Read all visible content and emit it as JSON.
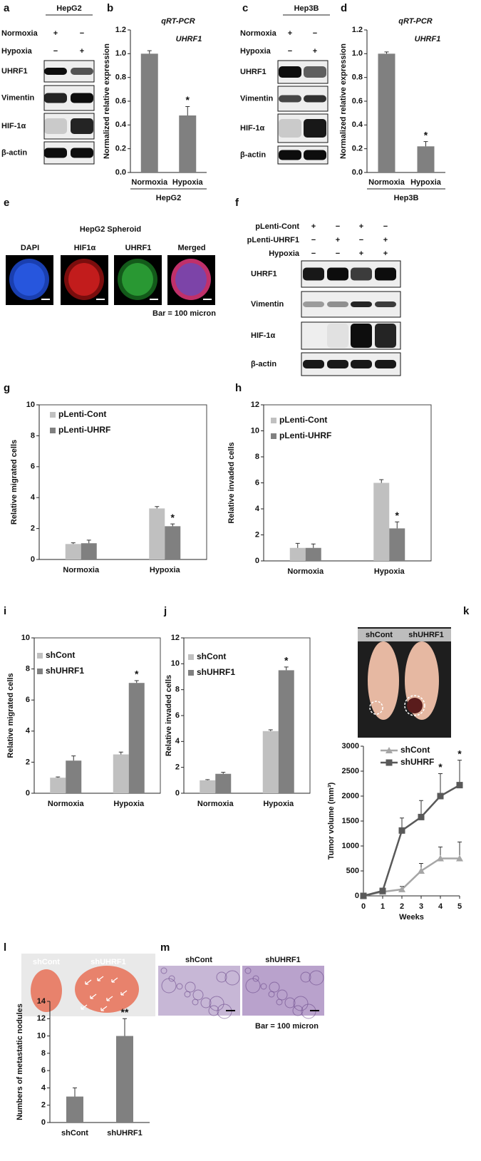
{
  "panels": {
    "a": {
      "letter": "a",
      "cell": "HepG2",
      "conditions": [
        {
          "name": "Normoxia",
          "signs": [
            "+",
            "−"
          ]
        },
        {
          "name": "Hypoxia",
          "signs": [
            "−",
            "+"
          ]
        }
      ],
      "bands": [
        "UHRF1",
        "Vimentin",
        "HIF-1α",
        "β-actin"
      ]
    },
    "c": {
      "letter": "c",
      "cell": "Hep3B",
      "conditions": [
        {
          "name": "Normoxia",
          "signs": [
            "+",
            "−"
          ]
        },
        {
          "name": "Hypoxia",
          "signs": [
            "−",
            "+"
          ]
        }
      ],
      "bands": [
        "UHRF1",
        "Vimentin",
        "HIF-1α",
        "β-actin"
      ]
    },
    "e": {
      "letter": "e",
      "title": "HepG2 Spheroid",
      "channels": [
        "DAPI",
        "HIF1α",
        "UHRF1",
        "Merged"
      ],
      "note": "Bar = 100 micron"
    },
    "f": {
      "letter": "f",
      "conditions": [
        {
          "name": "pLenti-Cont",
          "signs": [
            "+",
            "−",
            "+",
            "−"
          ]
        },
        {
          "name": "pLenti-UHRF1",
          "signs": [
            "−",
            "+",
            "−",
            "+"
          ]
        },
        {
          "name": "Hypoxia",
          "signs": [
            "−",
            "−",
            "+",
            "+"
          ]
        }
      ],
      "bands": [
        "UHRF1",
        "Vimentin",
        "HIF-1α",
        "β-actin"
      ]
    },
    "k": {
      "photo_labels": [
        "shCont",
        "shUHRF1"
      ]
    },
    "l": {
      "letter": "l",
      "photo_labels": [
        "shCont",
        "shUHRF1"
      ]
    },
    "m": {
      "letter": "m",
      "labels": [
        "shCont",
        "shUHRF1"
      ],
      "note": "Bar = 100 micron"
    }
  },
  "chart_data": [
    {
      "panel": "b",
      "type": "bar",
      "title": "qRT-PCR",
      "annotation": "UHRF1",
      "y_label": "Normalized relative expression",
      "x_label": "HepG2",
      "categories": [
        "Normoxia",
        "Hypoxia"
      ],
      "values": [
        1.0,
        0.48
      ],
      "errors": [
        0.025,
        0.075
      ],
      "significance": [
        null,
        "*"
      ],
      "color": "#808080",
      "ylim": [
        0,
        1.2
      ],
      "yticks": [
        {
          "value": 0,
          "label": "0.0"
        },
        0.2,
        0.4,
        0.6,
        0.8,
        {
          "value": 1,
          "label": "1.0"
        },
        1.2
      ]
    },
    {
      "panel": "d",
      "type": "bar",
      "title": "qRT-PCR",
      "annotation": "UHRF1",
      "y_label": "Normalized relative expression",
      "x_label": "Hep3B",
      "categories": [
        "Normoxia",
        "Hypoxia"
      ],
      "values": [
        1.0,
        0.22
      ],
      "errors": [
        0.015,
        0.04
      ],
      "significance": [
        null,
        "*"
      ],
      "color": "#808080",
      "ylim": [
        0,
        1.2
      ],
      "yticks": [
        {
          "value": 0,
          "label": "0.0"
        },
        0.2,
        0.4,
        0.6,
        0.8,
        {
          "value": 1,
          "label": "1.0"
        },
        1.2
      ]
    },
    {
      "panel": "g",
      "type": "bar",
      "y_label": "Relative migrated cells",
      "categories": [
        "Normoxia",
        "Hypoxia"
      ],
      "series": [
        {
          "name": "pLenti-Cont",
          "color": "#c0c0c0",
          "values": [
            1.0,
            3.3
          ],
          "errors": [
            0.08,
            0.12
          ],
          "significance": [
            null,
            null
          ]
        },
        {
          "name": "pLenti-UHRF",
          "color": "#808080",
          "values": [
            1.05,
            2.15
          ],
          "errors": [
            0.2,
            0.15
          ],
          "significance": [
            null,
            "*"
          ]
        }
      ],
      "ylim": [
        0,
        10
      ],
      "yticks": [
        0,
        2,
        4,
        6,
        8,
        10
      ]
    },
    {
      "panel": "h",
      "type": "bar",
      "y_label": "Relative invaded cells",
      "categories": [
        "Normoxia",
        "Hypoxia"
      ],
      "series": [
        {
          "name": "pLenti-Cont",
          "color": "#c0c0c0",
          "values": [
            1.0,
            6.0
          ],
          "errors": [
            0.35,
            0.25
          ],
          "significance": [
            null,
            null
          ]
        },
        {
          "name": "pLenti-UHRF",
          "color": "#808080",
          "values": [
            1.0,
            2.5
          ],
          "errors": [
            0.3,
            0.5
          ],
          "significance": [
            null,
            "*"
          ]
        }
      ],
      "ylim": [
        0,
        12
      ],
      "yticks": [
        0,
        2,
        4,
        6,
        8,
        10,
        12
      ]
    },
    {
      "panel": "i",
      "type": "bar",
      "y_label": "Relative migrated cells",
      "categories": [
        "Normoxia",
        "Hypoxia"
      ],
      "series": [
        {
          "name": "shCont",
          "color": "#c0c0c0",
          "values": [
            1.0,
            2.5
          ],
          "errors": [
            0.05,
            0.15
          ],
          "significance": [
            null,
            null
          ]
        },
        {
          "name": "shUHRF1",
          "color": "#808080",
          "values": [
            2.1,
            7.1
          ],
          "errors": [
            0.3,
            0.15
          ],
          "significance": [
            null,
            "*"
          ]
        }
      ],
      "ylim": [
        0,
        10
      ],
      "yticks": [
        0,
        2,
        4,
        6,
        8,
        10
      ]
    },
    {
      "panel": "j",
      "type": "bar",
      "y_label": "Relative invaded cells",
      "categories": [
        "Normoxia",
        "Hypoxia"
      ],
      "series": [
        {
          "name": "shCont",
          "color": "#c0c0c0",
          "values": [
            1.0,
            4.8
          ],
          "errors": [
            0.05,
            0.1
          ],
          "significance": [
            null,
            null
          ]
        },
        {
          "name": "shUHRF1",
          "color": "#808080",
          "values": [
            1.5,
            9.5
          ],
          "errors": [
            0.12,
            0.25
          ],
          "significance": [
            null,
            "*"
          ]
        }
      ],
      "ylim": [
        0,
        12
      ],
      "yticks": [
        0,
        2,
        4,
        6,
        8,
        10,
        12
      ]
    },
    {
      "panel": "k",
      "type": "line",
      "y_label": "Tumor volume (mm³)",
      "x_label": "Weeks",
      "x": [
        0,
        1,
        2,
        3,
        4,
        5
      ],
      "series": [
        {
          "name": "shCont",
          "color": "#a6a6a6",
          "marker": "triangle",
          "values": [
            0,
            80,
            130,
            500,
            750,
            750
          ],
          "errors": [
            0,
            30,
            60,
            150,
            230,
            330
          ],
          "significance": [
            null,
            null,
            null,
            null,
            null,
            null
          ]
        },
        {
          "name": "shUHRF",
          "color": "#595959",
          "marker": "square",
          "values": [
            0,
            100,
            1310,
            1580,
            2000,
            2220
          ],
          "errors": [
            0,
            40,
            250,
            330,
            450,
            500
          ],
          "significance": [
            null,
            null,
            null,
            null,
            "*",
            "*"
          ]
        }
      ],
      "xlim": [
        0,
        5
      ],
      "xticks": [
        0,
        1,
        2,
        3,
        4,
        5
      ],
      "ylim": [
        0,
        3000
      ],
      "yticks": [
        0,
        500,
        1000,
        1500,
        2000,
        2500,
        3000
      ]
    },
    {
      "type": "bar",
      "y_label": "Numbers of metastatic nodules",
      "categories": [
        "shCont",
        "shUHRF1"
      ],
      "values": [
        3,
        10
      ],
      "errors": [
        1,
        2
      ],
      "significance": [
        null,
        "**"
      ],
      "color": "#808080",
      "ylim": [
        0,
        14
      ],
      "yticks": [
        0,
        2,
        4,
        6,
        8,
        10,
        12,
        14
      ]
    }
  ]
}
